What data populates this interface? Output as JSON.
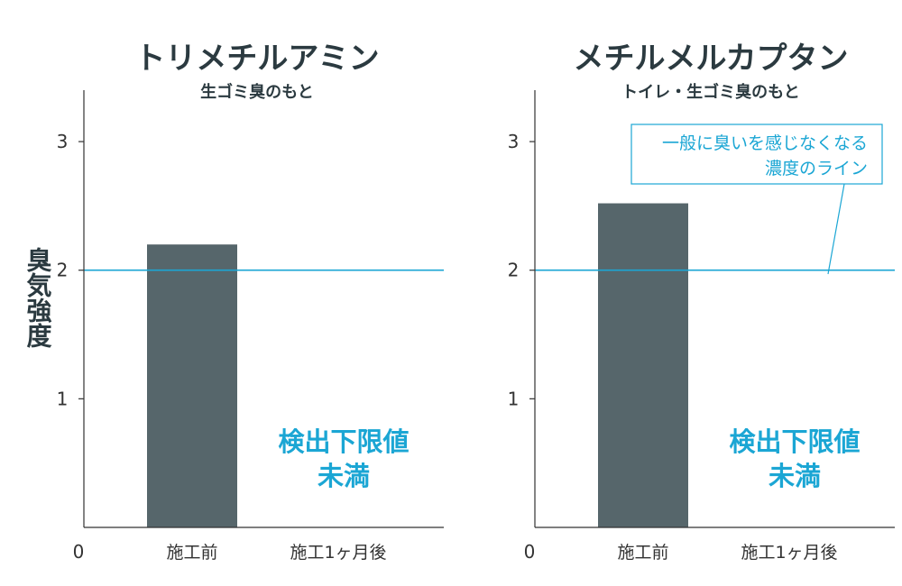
{
  "ylabel": "臭気強度",
  "colors": {
    "bar": "#56666b",
    "threshold": "#1ba6d4",
    "axis": "#333333",
    "title": "#2b3a40"
  },
  "chart_data": [
    {
      "type": "bar",
      "title": "トリメチルアミン",
      "subtitle": "生ゴミ臭のもと",
      "x_origin_label": "0",
      "categories": [
        "施工前",
        "施工1ヶ月後"
      ],
      "values": [
        2.2,
        null
      ],
      "y_ticks": [
        "1",
        "2",
        "3"
      ],
      "ylim": [
        0,
        3.4
      ],
      "threshold": 2,
      "not_detected_label": [
        "検出下限値",
        "未満"
      ],
      "grid": false
    },
    {
      "type": "bar",
      "title": "メチルメルカプタン",
      "subtitle": "トイレ・生ゴミ臭のもと",
      "x_origin_label": "0",
      "categories": [
        "施工前",
        "施工1ヶ月後"
      ],
      "values": [
        2.52,
        null
      ],
      "y_ticks": [
        "1",
        "2",
        "3"
      ],
      "ylim": [
        0,
        3.4
      ],
      "threshold": 2,
      "threshold_annotation": [
        "一般に臭いを感じなくなる",
        "濃度のライン"
      ],
      "not_detected_label": [
        "検出下限値",
        "未満"
      ],
      "grid": false
    }
  ]
}
